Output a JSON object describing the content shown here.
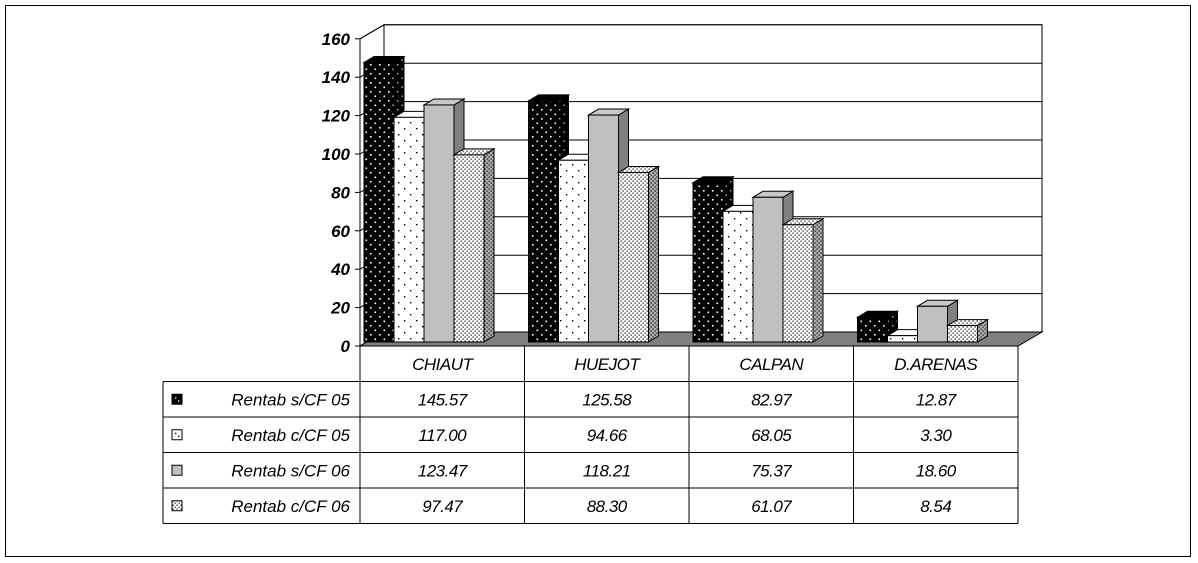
{
  "chart_data": {
    "type": "bar",
    "variant": "3d-clustered-column-with-data-table",
    "categories": [
      "CHIAUT",
      "HUEJOT",
      "CALPAN",
      "D.ARENAS"
    ],
    "ylim": [
      0,
      160
    ],
    "yticks": [
      0,
      20,
      40,
      60,
      80,
      100,
      120,
      140,
      160
    ],
    "grid": true,
    "series": [
      {
        "name": "Rentab s/CF 05",
        "values": [
          145.57,
          125.58,
          82.97,
          12.87
        ],
        "labels": [
          "145.57",
          "125.58",
          "82.97",
          "12.87"
        ],
        "color": "#000000",
        "pattern": "dots-white-on-black"
      },
      {
        "name": "Rentab c/CF 05",
        "values": [
          117.0,
          94.66,
          68.05,
          3.3
        ],
        "labels": [
          "117.00",
          "94.66",
          "68.05",
          "3.30"
        ],
        "color": "#ffffff",
        "pattern": "sparse-dots-on-white"
      },
      {
        "name": "Rentab s/CF 06",
        "values": [
          123.47,
          118.21,
          75.37,
          18.6
        ],
        "labels": [
          "123.47",
          "118.21",
          "75.37",
          "18.60"
        ],
        "color": "#c0c0c0",
        "pattern": "solid-gray"
      },
      {
        "name": "Rentab c/CF 06",
        "values": [
          97.47,
          88.3,
          61.07,
          8.54
        ],
        "labels": [
          "97.47",
          "88.30",
          "61.07",
          "8.54"
        ],
        "color": "#ffffff",
        "pattern": "dense-dots-on-white"
      }
    ]
  }
}
